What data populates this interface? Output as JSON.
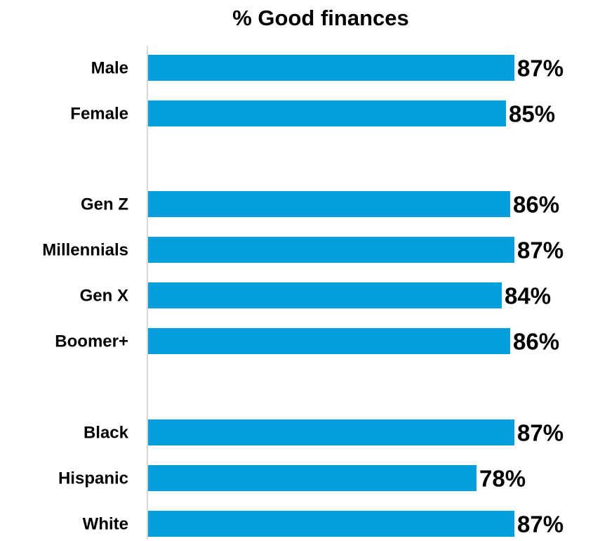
{
  "chart_data": {
    "type": "bar",
    "orientation": "horizontal",
    "title": "% Good finances",
    "xlabel": "",
    "ylabel": "",
    "xlim": [
      0,
      100
    ],
    "grid": false,
    "legend": "none",
    "bar_color": "#009FDB",
    "axis_color": "#D9D9D9",
    "groups": [
      {
        "categories": [
          "Male",
          "Female"
        ],
        "values": [
          87,
          85
        ],
        "labels": [
          "87%",
          "85%"
        ]
      },
      {
        "categories": [
          "Gen Z",
          "Millennials",
          "Gen X",
          "Boomer+"
        ],
        "values": [
          86,
          87,
          84,
          86
        ],
        "labels": [
          "86%",
          "87%",
          "84%",
          "86%"
        ]
      },
      {
        "categories": [
          "Black",
          "Hispanic",
          "White"
        ],
        "values": [
          87,
          78,
          87
        ],
        "labels": [
          "87%",
          "78%",
          "87%"
        ]
      }
    ]
  }
}
